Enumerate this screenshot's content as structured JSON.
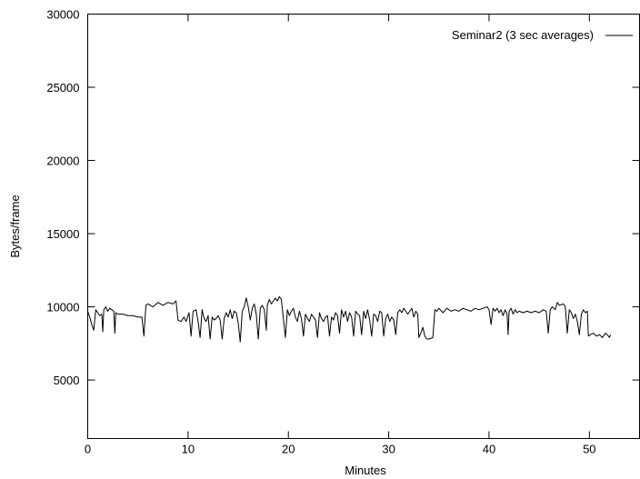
{
  "chart_data": {
    "type": "line",
    "title": "",
    "xlabel": "Minutes",
    "ylabel": "Bytes/frame",
    "xlim": [
      0,
      55
    ],
    "ylim": [
      1000,
      30000
    ],
    "x_ticks": [
      0,
      10,
      20,
      30,
      40,
      50
    ],
    "y_ticks": [
      5000,
      10000,
      15000,
      20000,
      25000,
      30000
    ],
    "grid": false,
    "legend_position": "top-right",
    "series": [
      {
        "name": "Seminar2 (3 sec averages)",
        "color": "#000000",
        "points": [
          [
            0.0,
            9700
          ],
          [
            0.2,
            9300
          ],
          [
            0.4,
            8800
          ],
          [
            0.6,
            8400
          ],
          [
            0.8,
            9800
          ],
          [
            1.0,
            9600
          ],
          [
            1.2,
            9400
          ],
          [
            1.4,
            9500
          ],
          [
            1.5,
            8300
          ],
          [
            1.6,
            9800
          ],
          [
            1.8,
            10000
          ],
          [
            2.0,
            9700
          ],
          [
            2.2,
            9900
          ],
          [
            2.4,
            9800
          ],
          [
            2.6,
            9700
          ],
          [
            2.7,
            8200
          ],
          [
            2.8,
            9600
          ],
          [
            3.0,
            9500
          ],
          [
            3.5,
            9500
          ],
          [
            4.0,
            9400
          ],
          [
            4.5,
            9400
          ],
          [
            5.0,
            9300
          ],
          [
            5.4,
            9300
          ],
          [
            5.6,
            8000
          ],
          [
            5.8,
            10100
          ],
          [
            6.0,
            10200
          ],
          [
            6.5,
            10000
          ],
          [
            7.0,
            10300
          ],
          [
            7.5,
            10100
          ],
          [
            8.0,
            10300
          ],
          [
            8.5,
            10200
          ],
          [
            8.8,
            10400
          ],
          [
            9.0,
            9100
          ],
          [
            9.3,
            9000
          ],
          [
            9.6,
            9300
          ],
          [
            9.8,
            9000
          ],
          [
            10.1,
            9600
          ],
          [
            10.3,
            8000
          ],
          [
            10.5,
            9700
          ],
          [
            10.8,
            9800
          ],
          [
            11.0,
            9000
          ],
          [
            11.2,
            7900
          ],
          [
            11.4,
            9800
          ],
          [
            11.6,
            9200
          ],
          [
            11.8,
            9000
          ],
          [
            12.0,
            9400
          ],
          [
            12.2,
            7800
          ],
          [
            12.4,
            9300
          ],
          [
            12.6,
            9100
          ],
          [
            12.8,
            9200
          ],
          [
            13.0,
            9400
          ],
          [
            13.2,
            9100
          ],
          [
            13.4,
            7800
          ],
          [
            13.6,
            9200
          ],
          [
            13.8,
            9600
          ],
          [
            14.0,
            9300
          ],
          [
            14.2,
            9800
          ],
          [
            14.4,
            9200
          ],
          [
            14.6,
            9700
          ],
          [
            14.8,
            9600
          ],
          [
            15.0,
            8900
          ],
          [
            15.2,
            7600
          ],
          [
            15.4,
            9700
          ],
          [
            15.6,
            10000
          ],
          [
            15.8,
            10600
          ],
          [
            16.0,
            10000
          ],
          [
            16.2,
            9100
          ],
          [
            16.4,
            9900
          ],
          [
            16.6,
            10200
          ],
          [
            16.8,
            9500
          ],
          [
            17.0,
            7800
          ],
          [
            17.2,
            9900
          ],
          [
            17.4,
            10100
          ],
          [
            17.6,
            9800
          ],
          [
            17.8,
            8400
          ],
          [
            17.9,
            10100
          ],
          [
            18.1,
            10500
          ],
          [
            18.3,
            10200
          ],
          [
            18.5,
            10400
          ],
          [
            18.7,
            10600
          ],
          [
            18.9,
            10400
          ],
          [
            19.1,
            10700
          ],
          [
            19.3,
            10500
          ],
          [
            19.5,
            9200
          ],
          [
            19.7,
            7900
          ],
          [
            19.9,
            9800
          ],
          [
            20.1,
            9400
          ],
          [
            20.3,
            9700
          ],
          [
            20.5,
            9900
          ],
          [
            20.7,
            9300
          ],
          [
            20.9,
            9000
          ],
          [
            21.1,
            9700
          ],
          [
            21.3,
            9200
          ],
          [
            21.5,
            8000
          ],
          [
            21.7,
            9500
          ],
          [
            21.9,
            9200
          ],
          [
            22.1,
            9000
          ],
          [
            22.3,
            9500
          ],
          [
            22.5,
            9300
          ],
          [
            22.7,
            9100
          ],
          [
            22.9,
            7900
          ],
          [
            23.1,
            9600
          ],
          [
            23.3,
            9200
          ],
          [
            23.5,
            9000
          ],
          [
            23.7,
            9300
          ],
          [
            23.9,
            9400
          ],
          [
            24.1,
            8000
          ],
          [
            24.3,
            9300
          ],
          [
            24.5,
            9100
          ],
          [
            24.7,
            9600
          ],
          [
            24.9,
            9400
          ],
          [
            25.1,
            8200
          ],
          [
            25.3,
            9800
          ],
          [
            25.5,
            9300
          ],
          [
            25.7,
            9700
          ],
          [
            25.9,
            9000
          ],
          [
            26.1,
            9600
          ],
          [
            26.3,
            9300
          ],
          [
            26.5,
            8000
          ],
          [
            26.7,
            9700
          ],
          [
            26.9,
            9500
          ],
          [
            27.1,
            9400
          ],
          [
            27.3,
            8100
          ],
          [
            27.5,
            9700
          ],
          [
            27.7,
            9200
          ],
          [
            27.9,
            9800
          ],
          [
            28.1,
            9100
          ],
          [
            28.3,
            8000
          ],
          [
            28.5,
            9500
          ],
          [
            28.7,
            9400
          ],
          [
            28.9,
            9000
          ],
          [
            29.1,
            9700
          ],
          [
            29.3,
            9600
          ],
          [
            29.5,
            8000
          ],
          [
            29.7,
            9200
          ],
          [
            29.9,
            9500
          ],
          [
            30.1,
            9000
          ],
          [
            30.3,
            9300
          ],
          [
            30.5,
            9100
          ],
          [
            30.7,
            8100
          ],
          [
            30.9,
            9600
          ],
          [
            31.1,
            9800
          ],
          [
            31.3,
            9600
          ],
          [
            31.5,
            9900
          ],
          [
            31.7,
            9700
          ],
          [
            31.9,
            9500
          ],
          [
            32.1,
            9700
          ],
          [
            32.3,
            9900
          ],
          [
            32.5,
            9300
          ],
          [
            32.7,
            9700
          ],
          [
            32.9,
            9500
          ],
          [
            33.0,
            7900
          ],
          [
            33.2,
            8200
          ],
          [
            33.4,
            8600
          ],
          [
            33.6,
            8000
          ],
          [
            33.8,
            7800
          ],
          [
            34.0,
            7800
          ],
          [
            34.4,
            7900
          ],
          [
            34.6,
            9800
          ],
          [
            34.8,
            9700
          ],
          [
            35.0,
            9900
          ],
          [
            35.4,
            9600
          ],
          [
            35.8,
            9900
          ],
          [
            36.2,
            9700
          ],
          [
            36.6,
            9800
          ],
          [
            37.0,
            9700
          ],
          [
            37.4,
            9900
          ],
          [
            37.8,
            9800
          ],
          [
            38.2,
            9700
          ],
          [
            38.6,
            9900
          ],
          [
            39.0,
            9800
          ],
          [
            39.4,
            9900
          ],
          [
            39.8,
            10000
          ],
          [
            40.0,
            9800
          ],
          [
            40.2,
            8800
          ],
          [
            40.4,
            9900
          ],
          [
            40.6,
            9700
          ],
          [
            40.8,
            9900
          ],
          [
            41.0,
            9600
          ],
          [
            41.2,
            9800
          ],
          [
            41.4,
            9400
          ],
          [
            41.6,
            9800
          ],
          [
            41.8,
            9500
          ],
          [
            41.9,
            8100
          ],
          [
            42.0,
            9700
          ],
          [
            42.2,
            9900
          ],
          [
            42.4,
            9500
          ],
          [
            42.6,
            9800
          ],
          [
            42.8,
            9600
          ],
          [
            43.0,
            9700
          ],
          [
            43.4,
            9600
          ],
          [
            43.8,
            9700
          ],
          [
            44.2,
            9600
          ],
          [
            44.6,
            9700
          ],
          [
            45.0,
            9600
          ],
          [
            45.4,
            9800
          ],
          [
            45.7,
            9700
          ],
          [
            45.9,
            8200
          ],
          [
            46.1,
            9800
          ],
          [
            46.3,
            10000
          ],
          [
            46.6,
            9800
          ],
          [
            46.8,
            10300
          ],
          [
            47.0,
            10100
          ],
          [
            47.4,
            10200
          ],
          [
            47.6,
            10000
          ],
          [
            47.8,
            8200
          ],
          [
            48.0,
            9800
          ],
          [
            48.2,
            9600
          ],
          [
            48.4,
            9200
          ],
          [
            48.6,
            9500
          ],
          [
            48.8,
            9000
          ],
          [
            49.0,
            8100
          ],
          [
            49.2,
            9500
          ],
          [
            49.4,
            9800
          ],
          [
            49.6,
            9600
          ],
          [
            49.8,
            9700
          ],
          [
            49.9,
            8000
          ],
          [
            50.1,
            8100
          ],
          [
            50.4,
            8200
          ],
          [
            50.7,
            8000
          ],
          [
            51.0,
            8100
          ],
          [
            51.3,
            7900
          ],
          [
            51.6,
            8200
          ],
          [
            51.9,
            8000
          ],
          [
            52.0,
            7900
          ],
          [
            52.1,
            8100
          ]
        ]
      }
    ]
  }
}
